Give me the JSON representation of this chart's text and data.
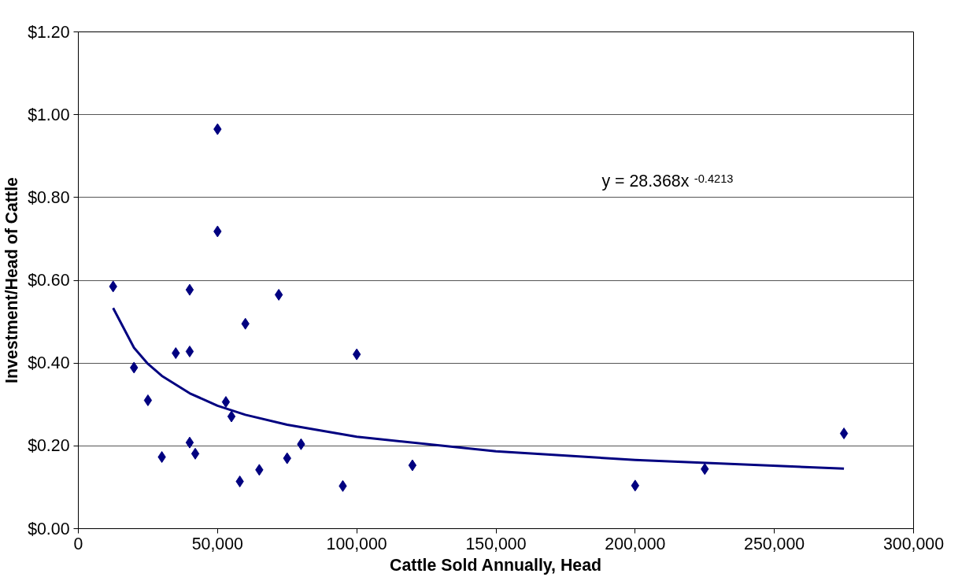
{
  "chart_data": {
    "type": "scatter",
    "xlabel": "Cattle Sold Annually, Head",
    "ylabel": "Investment/Head of Cattle",
    "grid": "y",
    "xlim": [
      0,
      300000
    ],
    "ylim": [
      0,
      1.2
    ],
    "xticks": [
      0,
      {
        "value": 50000,
        "label": "50,000"
      },
      {
        "value": 100000,
        "label": "100,000"
      },
      {
        "value": 150000,
        "label": "150,000"
      },
      {
        "value": 200000,
        "label": "200,000"
      },
      {
        "value": 250000,
        "label": "250,000"
      },
      {
        "value": 300000,
        "label": "300,000"
      }
    ],
    "yticks": [
      {
        "value": 0,
        "label": "$0.00"
      },
      {
        "value": 0.2,
        "label": "$0.20"
      },
      {
        "value": 0.4,
        "label": "$0.40"
      },
      {
        "value": 0.6,
        "label": "$0.60"
      },
      {
        "value": 0.8,
        "label": "$0.80"
      },
      {
        "value": 1.0,
        "label": "$1.00"
      },
      {
        "value": 1.2,
        "label": "$1.20"
      }
    ],
    "annotations": [
      "y = 28.368x$^{-0.4213}$"
    ],
    "series": [
      {
        "marker": "diamond",
        "color": "#000080",
        "x": [
          12500,
          20000,
          25000,
          30000,
          35000,
          40000,
          40000,
          40000,
          42000,
          50000,
          50000,
          53000,
          55000,
          58000,
          60000,
          65000,
          72000,
          75000,
          80000,
          95000,
          100000,
          120000,
          200000,
          225000,
          275000
        ],
        "values": [
          0.585,
          0.389,
          0.31,
          0.173,
          0.424,
          0.577,
          0.428,
          0.208,
          0.181,
          0.965,
          0.718,
          0.306,
          0.271,
          0.114,
          0.495,
          0.142,
          0.565,
          0.17,
          0.204,
          0.103,
          0.421,
          0.153,
          0.104,
          0.144,
          0.23
        ]
      },
      {
        "type": "line",
        "marker": "none",
        "color": "#000080",
        "x": [
          12500,
          20000,
          25000,
          30000,
          40000,
          50000,
          60000,
          75000,
          100000,
          150000,
          200000,
          275000
        ],
        "values": [
          0.533,
          0.437,
          0.398,
          0.369,
          0.327,
          0.297,
          0.275,
          0.251,
          0.222,
          0.187,
          0.166,
          0.145
        ]
      }
    ]
  }
}
